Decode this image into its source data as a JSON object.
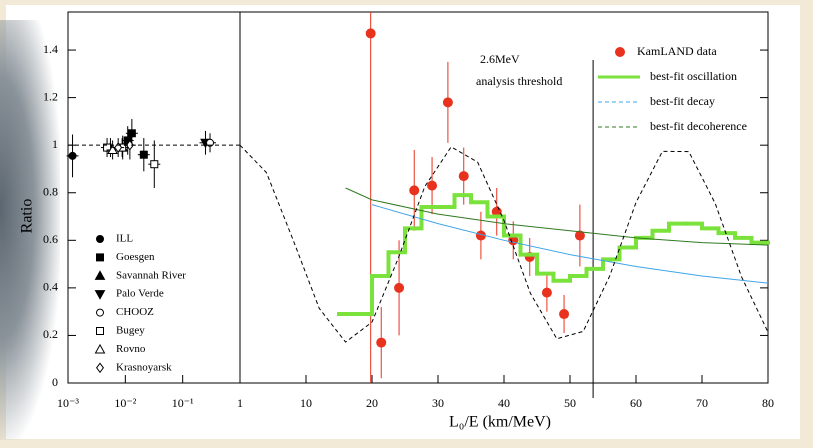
{
  "chart_data": [
    {
      "type": "scatter",
      "xscale": "log",
      "xlim": [
        0.001,
        1
      ],
      "xticks": [
        {
          "value": 0.001,
          "label": "10⁻³"
        },
        {
          "value": 0.01,
          "label": "10⁻²"
        },
        {
          "value": 0.1,
          "label": "10⁻¹"
        },
        1
      ],
      "ylim": [
        0,
        1.56
      ],
      "yticks": [
        0,
        0.2,
        0.4,
        0.6,
        0.8,
        1,
        1.2,
        1.4
      ],
      "y_label": "Ratio",
      "color": "#000000",
      "series": [
        {
          "name": "ILL",
          "marker": "circle",
          "x": [
            0.0012
          ],
          "values": [
            0.955
          ],
          "errors": [
            0.09
          ]
        },
        {
          "name": "Goesgen",
          "marker": "square",
          "x": [
            0.011,
            0.013,
            0.021
          ],
          "values": [
            1.02,
            1.05,
            0.96
          ],
          "errors": [
            0.06,
            0.06,
            0.07
          ]
        },
        {
          "name": "Savannah River",
          "marker": "triangle",
          "x": [
            0.0055,
            0.009
          ],
          "values": [
            0.99,
            0.99
          ],
          "errors": [
            0.04,
            0.05
          ]
        },
        {
          "name": "Palo Verde",
          "marker": "triangle-down",
          "x": [
            0.25
          ],
          "values": [
            1.01
          ],
          "errors": [
            0.05
          ]
        },
        {
          "name": "CHOOZ",
          "marker": "circle-open",
          "x": [
            0.3
          ],
          "values": [
            1.01
          ],
          "errors": [
            0.04
          ]
        },
        {
          "name": "Bugey",
          "marker": "square-open",
          "x": [
            0.0048,
            0.0088,
            0.032
          ],
          "values": [
            0.99,
            0.99,
            0.92
          ],
          "errors": [
            0.04,
            0.04,
            0.1
          ]
        },
        {
          "name": "Rovno",
          "marker": "triangle-open",
          "x": [
            0.006
          ],
          "values": [
            0.98
          ],
          "errors": [
            0.04
          ]
        },
        {
          "name": "Krasnoyarsk",
          "marker": "diamond-open",
          "x": [
            0.0075,
            0.012
          ],
          "values": [
            0.99,
            1.0
          ],
          "errors": [
            0.04,
            0.06
          ]
        },
        {
          "kind": "line",
          "dashed": true,
          "x": [
            0.001,
            1
          ],
          "values": [
            1,
            1
          ]
        }
      ]
    },
    {
      "type": "line",
      "xlim": [
        0,
        80
      ],
      "xticks": [
        10,
        20,
        30,
        40,
        50,
        60,
        70,
        80
      ],
      "ylim": [
        0,
        1.56
      ],
      "x_label": "L₀/E (km/MeV)",
      "annotation": {
        "x": 53.5,
        "lines": [
          "2.6MeV",
          "analysis threshold"
        ]
      },
      "series": [
        {
          "name": "KamLAND data",
          "kind": "points",
          "color": "#e8321e",
          "x": [
            19.8,
            21.4,
            24.1,
            26.4,
            29.1,
            31.5,
            33.9,
            36.5,
            38.9,
            41.4,
            43.9,
            46.5,
            49.1,
            51.5
          ],
          "values": [
            1.47,
            0.17,
            0.4,
            0.81,
            0.83,
            1.18,
            0.87,
            0.62,
            0.72,
            0.6,
            0.53,
            0.38,
            0.29,
            0.62
          ],
          "errors": [
            1.47,
            0.15,
            0.2,
            0.17,
            0.12,
            0.17,
            0.12,
            0.1,
            0.1,
            0.08,
            0.08,
            0.08,
            0.08,
            0.13
          ]
        },
        {
          "name": "best-fit oscillation",
          "kind": "step",
          "color": "#7be23c",
          "bins": [
            15,
            17.5,
            20,
            22.5,
            25,
            27.5,
            30,
            32.5,
            35,
            37.5,
            40,
            42.5,
            45,
            47.5,
            50,
            52.5,
            55,
            57.5,
            60,
            62.5,
            65,
            67.5,
            70,
            72.5,
            75,
            77.5,
            80
          ],
          "values": [
            0.29,
            0.29,
            0.45,
            0.55,
            0.65,
            0.74,
            0.74,
            0.79,
            0.76,
            0.7,
            0.62,
            0.54,
            0.46,
            0.43,
            0.45,
            0.48,
            0.52,
            0.57,
            0.61,
            0.64,
            0.67,
            0.67,
            0.65,
            0.63,
            0.61,
            0.59
          ]
        },
        {
          "name": "best-fit decay",
          "kind": "line",
          "color": "#3fa5ea",
          "x": [
            20,
            30,
            40,
            50,
            60,
            70,
            80
          ],
          "values": [
            0.75,
            0.67,
            0.6,
            0.54,
            0.49,
            0.45,
            0.42
          ]
        },
        {
          "name": "best-fit decoherence",
          "kind": "line",
          "color": "#2f7a21",
          "x": [
            16,
            20,
            30,
            40,
            50,
            60,
            70,
            80
          ],
          "values": [
            0.82,
            0.77,
            0.71,
            0.67,
            0.64,
            0.61,
            0.59,
            0.58
          ]
        },
        {
          "kind": "line",
          "dashed": true,
          "color": "#000000",
          "x": [
            0,
            4,
            8,
            12,
            16,
            20,
            24,
            28,
            32,
            36,
            40,
            44,
            48,
            52,
            56,
            60,
            64,
            68,
            72,
            76,
            80
          ],
          "values": [
            1.0,
            0.885,
            0.605,
            0.314,
            0.172,
            0.256,
            0.526,
            0.826,
            0.993,
            0.929,
            0.683,
            0.377,
            0.186,
            0.217,
            0.449,
            0.759,
            0.974,
            0.973,
            0.755,
            0.446,
            0.214
          ]
        }
      ]
    }
  ]
}
